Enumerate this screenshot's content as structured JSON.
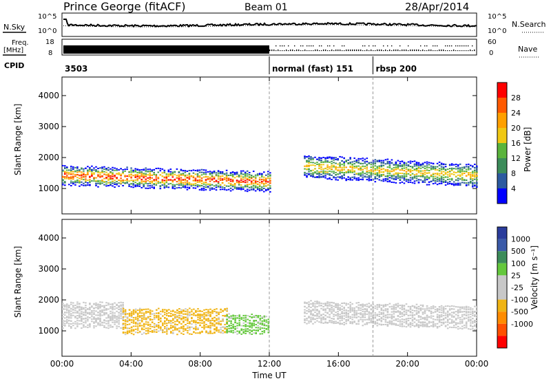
{
  "header": {
    "station": "Prince George (fitACF)",
    "beam": "Beam 01",
    "date": "28/Apr/2014"
  },
  "left_labels": {
    "nsky": "N.Sky",
    "freq": "Freq.",
    "freq_unit": "[MHz]",
    "cpid": "CPID"
  },
  "right_labels": {
    "nsearch": "N.Search",
    "nave": "Nave"
  },
  "noise_ticks": {
    "top": "10^5",
    "bottom": "10^0"
  },
  "freq_ticks": {
    "top": "18",
    "bottom": "8"
  },
  "nave_ticks": {
    "top": "60",
    "bottom": "0"
  },
  "cpid_segments": [
    {
      "label": "3503",
      "start_hour": 0
    },
    {
      "label": "normal (fast) 151",
      "start_hour": 12
    },
    {
      "label": "rbsp 200",
      "start_hour": 18
    }
  ],
  "colors": {
    "power_scale": [
      "#0000ff",
      "#2c5aa0",
      "#3c8c5a",
      "#5ab43c",
      "#f0c814",
      "#ffa000",
      "#ff5a00",
      "#ff0000"
    ],
    "velocity_scale": [
      "#2a3c9c",
      "#3a5aa8",
      "#3c8c5a",
      "#64c83c",
      "#c8c8c8",
      "#c8c8c8",
      "#f0b414",
      "#ff8c00",
      "#ff5000",
      "#ff0000"
    ]
  },
  "chart_data": [
    {
      "type": "heatmap",
      "title": "",
      "xlabel": "",
      "ylabel": "Slant Range [km]",
      "x_ticks": [
        "00:00",
        "04:00",
        "08:00",
        "12:00",
        "16:00",
        "20:00",
        "00:00"
      ],
      "y_ticks": [
        "1000",
        "2000",
        "3000",
        "4000"
      ],
      "xlim": [
        0,
        24
      ],
      "ylim": [
        180,
        4600
      ],
      "colorbar": {
        "label": "Power [dB]",
        "ticks": [
          "4",
          "8",
          "12",
          "16",
          "20",
          "24",
          "28"
        ],
        "range": [
          0,
          30
        ]
      },
      "echo_bands": [
        {
          "start_hour": 0.0,
          "end_hour": 12.0,
          "center_km_start": 1400,
          "center_km_end": 1200,
          "width_km": 600,
          "peak_db": 28
        },
        {
          "start_hour": 14.0,
          "end_hour": 24.0,
          "center_km_start": 1700,
          "center_km_end": 1400,
          "width_km": 700,
          "peak_db": 20
        }
      ]
    },
    {
      "type": "heatmap",
      "title": "",
      "xlabel": "Time UT",
      "ylabel": "Slant Range [km]",
      "x_ticks": [
        "00:00",
        "04:00",
        "08:00",
        "12:00",
        "16:00",
        "20:00",
        "00:00"
      ],
      "y_ticks": [
        "1000",
        "2000",
        "3000",
        "4000"
      ],
      "xlim": [
        0,
        24
      ],
      "ylim": [
        180,
        4600
      ],
      "colorbar": {
        "label": "Velocity [m s⁻¹]",
        "ticks": [
          "1000",
          "500",
          "100",
          "25",
          "-25",
          "-100",
          "-500",
          "-1000"
        ],
        "range": [
          -1000,
          1000
        ]
      },
      "echo_bands": [
        {
          "start_hour": 0.0,
          "end_hour": 3.5,
          "center_km_start": 1500,
          "center_km_end": 1500,
          "width_km": 800,
          "velocity": 0
        },
        {
          "start_hour": 3.5,
          "end_hour": 9.5,
          "center_km_start": 1300,
          "center_km_end": 1300,
          "width_km": 800,
          "velocity": -300
        },
        {
          "start_hour": 9.5,
          "end_hour": 12.0,
          "center_km_start": 1200,
          "center_km_end": 1200,
          "width_km": 600,
          "velocity": 300
        },
        {
          "start_hour": 14.0,
          "end_hour": 24.0,
          "center_km_start": 1600,
          "center_km_end": 1400,
          "width_km": 700,
          "velocity": 0
        }
      ]
    }
  ]
}
